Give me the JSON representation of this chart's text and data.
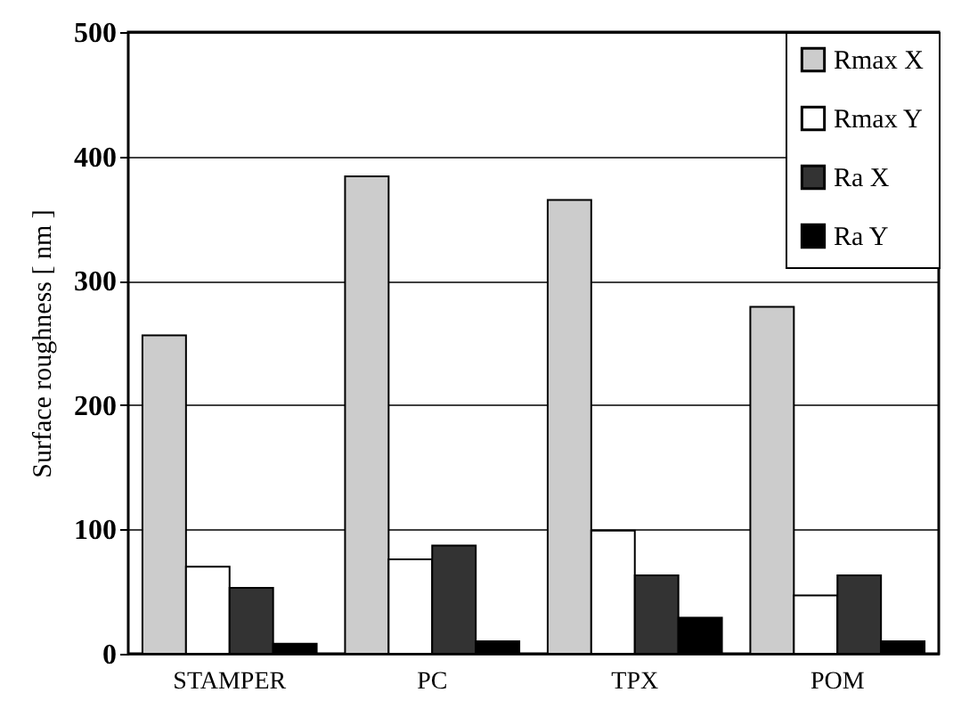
{
  "chart_data": {
    "type": "bar",
    "ylabel": "Surface roughness [ nm ]",
    "categories": [
      "STAMPER",
      "PC",
      "TPX",
      "POM"
    ],
    "series": [
      {
        "name": "Rmax X",
        "color": "#cccccc",
        "values": [
          256,
          384,
          365,
          279
        ]
      },
      {
        "name": "Rmax Y",
        "color": "#ffffff",
        "values": [
          70,
          76,
          99,
          47
        ]
      },
      {
        "name": "Ra X",
        "color": "#333333",
        "values": [
          53,
          87,
          63,
          63
        ]
      },
      {
        "name": "Ra Y",
        "color": "#000000",
        "values": [
          8,
          10,
          29,
          10
        ]
      }
    ],
    "ylim": [
      0,
      500
    ],
    "yticks": [
      0,
      100,
      200,
      300,
      400,
      500
    ],
    "grid": "y",
    "legend": "top right"
  }
}
